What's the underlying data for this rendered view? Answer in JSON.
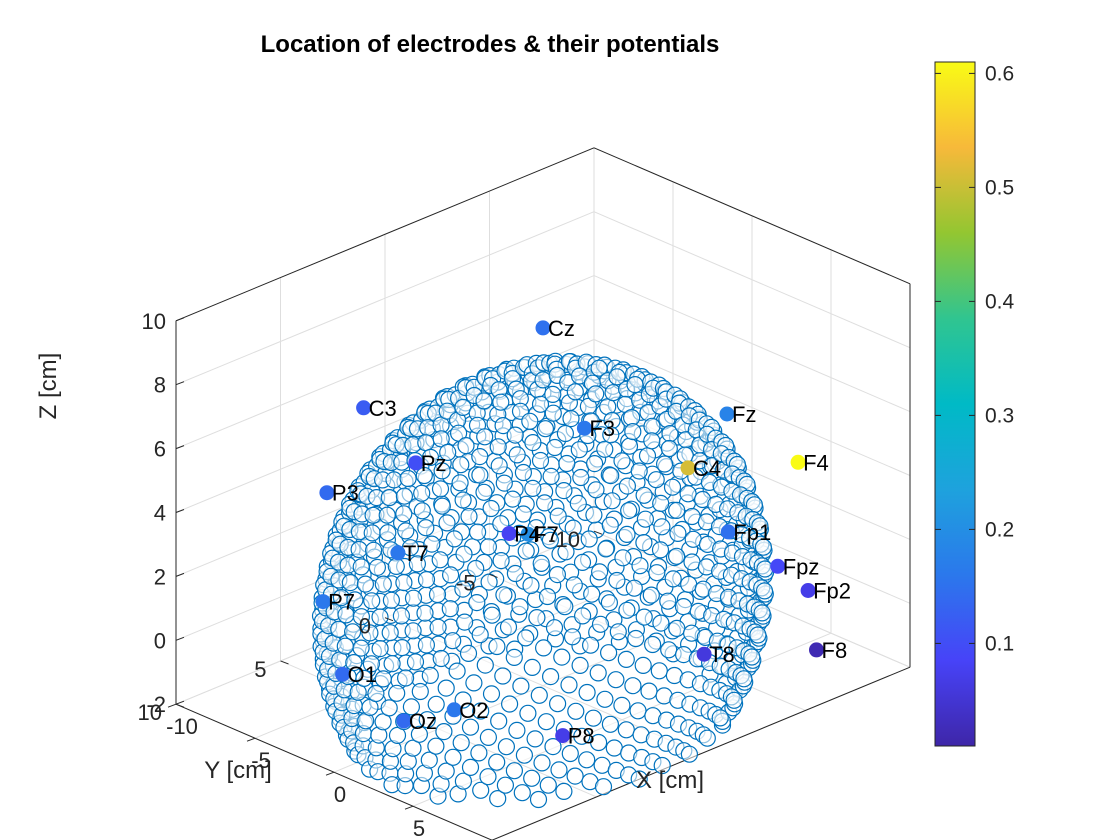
{
  "chart_data": {
    "type": "scatter",
    "title": "Location of electrodes & their potentials",
    "xlabel": "X [cm]",
    "ylabel": "Y [cm]",
    "zlabel": "Z [cm]",
    "xlim": [
      -10,
      10
    ],
    "ylim": [
      -10,
      10
    ],
    "zlim": [
      -2,
      10
    ],
    "xticks": [
      "-10",
      "-5",
      "0",
      "5",
      "10"
    ],
    "yticks": [
      "-10",
      "-5",
      "0",
      "5",
      "10"
    ],
    "zticks": [
      "-2",
      "0",
      "2",
      "4",
      "6",
      "8",
      "10"
    ],
    "grid": true,
    "view": "3-D isometric",
    "colormap": "parula",
    "colorbar": {
      "ticks": [
        "0.1",
        "0.2",
        "0.3",
        "0.4",
        "0.5",
        "0.6"
      ],
      "range": [
        0.01,
        0.61
      ]
    },
    "surface_points": {
      "description": "",
      "shape": "hemisphere",
      "radius_cm": 8.5,
      "color": "#0072BD"
    },
    "electrodes": [
      {
        "name": "Cz",
        "x": 0,
        "y": 0,
        "z": 9.2,
        "potential": 0.15
      },
      {
        "name": "C3",
        "x": -5.8,
        "y": 4.2,
        "z": 6.6,
        "potential": 0.12
      },
      {
        "name": "F3",
        "x": 0.9,
        "y": -1.3,
        "z": 5.9,
        "potential": 0.16
      },
      {
        "name": "Fz",
        "x": 4.5,
        "y": -5.4,
        "z": 6.0,
        "potential": 0.18
      },
      {
        "name": "Pz",
        "x": -5.8,
        "y": 1.7,
        "z": 4.2,
        "potential": 0.1
      },
      {
        "name": "P3",
        "x": -6.8,
        "y": 5.2,
        "z": 4.0,
        "potential": 0.14
      },
      {
        "name": "C4",
        "x": 2.3,
        "y": -5.2,
        "z": 3.9,
        "potential": 0.51
      },
      {
        "name": "F4",
        "x": 5.3,
        "y": -8.2,
        "z": 3.9,
        "potential": 0.61
      },
      {
        "name": "F7",
        "x": -2.0,
        "y": -0.8,
        "z": 2.1,
        "potential": 0.2
      },
      {
        "name": "T7",
        "x": -6.8,
        "y": 1.8,
        "z": 1.2,
        "potential": 0.16
      },
      {
        "name": "P4",
        "x": -3.6,
        "y": -1.1,
        "z": 1.7,
        "potential": 0.08
      },
      {
        "name": "Fp1",
        "x": 2.6,
        "y": -6.9,
        "z": 1.5,
        "potential": 0.15
      },
      {
        "name": "Fpz",
        "x": 4.8,
        "y": -7.6,
        "z": 0.7,
        "potential": 0.09
      },
      {
        "name": "Fp2",
        "x": 5.4,
        "y": -8.6,
        "z": -0.2,
        "potential": 0.07
      },
      {
        "name": "P7",
        "x": -8.1,
        "y": 4.4,
        "z": 0.1,
        "potential": 0.16
      },
      {
        "name": "O1",
        "x": -6.6,
        "y": 4.6,
        "z": -1.8,
        "potential": 0.14
      },
      {
        "name": "F8",
        "x": 5.8,
        "y": -8.7,
        "z": -2.0,
        "potential": 0.02
      },
      {
        "name": "Oz",
        "x": -5.5,
        "y": 2.5,
        "z": -3.6,
        "potential": 0.14
      },
      {
        "name": "O2",
        "x": -4.3,
        "y": 1.0,
        "z": -3.4,
        "potential": 0.16
      },
      {
        "name": "T8",
        "x": 1.2,
        "y": -6.8,
        "z": -2.6,
        "potential": 0.06
      },
      {
        "name": "P8",
        "x": -1.4,
        "y": -2.0,
        "z": -4.4,
        "potential": 0.07
      }
    ]
  }
}
